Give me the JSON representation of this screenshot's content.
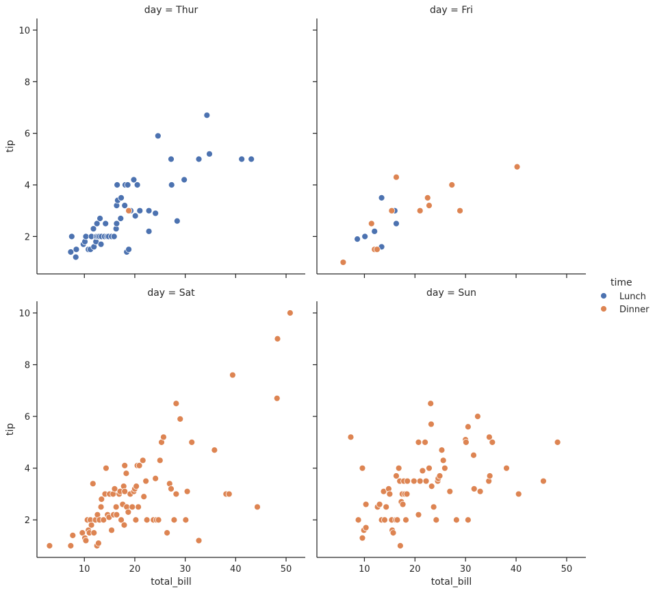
{
  "chart_data": {
    "type": "scatter",
    "xlabel": "total_bill",
    "ylabel": "tip",
    "xlim": [
      0.6,
      53.8
    ],
    "ylim": [
      0.55,
      10.45
    ],
    "xticks": [
      10,
      20,
      30,
      40,
      50
    ],
    "yticks": [
      2,
      4,
      6,
      8,
      10
    ],
    "legend": {
      "title": "time",
      "placement": "right",
      "entries": [
        {
          "label": "Lunch",
          "color": "#4c72b0"
        },
        {
          "label": "Dinner",
          "color": "#dd8452"
        }
      ]
    },
    "panels": [
      {
        "title": "day = Thur",
        "series": [
          {
            "name": "Lunch",
            "points": [
              [
                7.3,
                1.4
              ],
              [
                7.5,
                2.0
              ],
              [
                8.3,
                1.2
              ],
              [
                8.4,
                1.5
              ],
              [
                9.8,
                1.7
              ],
              [
                10.1,
                1.8
              ],
              [
                10.3,
                2.0
              ],
              [
                10.8,
                1.5
              ],
              [
                11.2,
                1.5
              ],
              [
                11.4,
                2.0
              ],
              [
                11.8,
                2.3
              ],
              [
                11.9,
                1.6
              ],
              [
                12.3,
                1.8
              ],
              [
                12.4,
                2.0
              ],
              [
                12.5,
                2.5
              ],
              [
                12.7,
                2.0
              ],
              [
                13.0,
                2.0
              ],
              [
                13.1,
                2.7
              ],
              [
                13.3,
                1.7
              ],
              [
                13.4,
                2.0
              ],
              [
                14.0,
                2.0
              ],
              [
                14.2,
                2.5
              ],
              [
                14.5,
                2.0
              ],
              [
                14.8,
                2.0
              ],
              [
                15.4,
                2.0
              ],
              [
                15.9,
                2.0
              ],
              [
                16.3,
                2.3
              ],
              [
                16.4,
                2.5
              ],
              [
                16.4,
                3.2
              ],
              [
                16.5,
                4.0
              ],
              [
                16.6,
                3.4
              ],
              [
                17.2,
                2.7
              ],
              [
                17.3,
                3.5
              ],
              [
                18.0,
                3.2
              ],
              [
                18.1,
                4.0
              ],
              [
                18.4,
                1.4
              ],
              [
                18.6,
                4.0
              ],
              [
                18.8,
                1.5
              ],
              [
                19.2,
                3.0
              ],
              [
                19.8,
                4.2
              ],
              [
                20.1,
                2.8
              ],
              [
                20.5,
                4.0
              ],
              [
                21.0,
                3.0
              ],
              [
                22.8,
                2.2
              ],
              [
                22.8,
                3.0
              ],
              [
                24.1,
                2.9
              ],
              [
                24.6,
                5.9
              ],
              [
                27.2,
                5.0
              ],
              [
                27.3,
                4.0
              ],
              [
                28.4,
                2.6
              ],
              [
                29.8,
                4.2
              ],
              [
                32.7,
                5.0
              ],
              [
                34.3,
                6.7
              ],
              [
                34.8,
                5.2
              ],
              [
                41.2,
                5.0
              ],
              [
                43.1,
                5.0
              ]
            ]
          },
          {
            "name": "Dinner",
            "points": [
              [
                18.8,
                3.0
              ]
            ]
          }
        ]
      },
      {
        "title": "day = Fri",
        "series": [
          {
            "name": "Lunch",
            "points": [
              [
                8.6,
                1.9
              ],
              [
                10.1,
                2.0
              ],
              [
                12.0,
                2.2
              ],
              [
                13.4,
                3.5
              ],
              [
                13.4,
                1.6
              ],
              [
                16.0,
                3.0
              ],
              [
                16.3,
                2.5
              ]
            ]
          },
          {
            "name": "Dinner",
            "points": [
              [
                5.8,
                1.0
              ],
              [
                11.4,
                2.5
              ],
              [
                12.0,
                1.5
              ],
              [
                12.5,
                1.5
              ],
              [
                15.4,
                3.0
              ],
              [
                16.3,
                4.3
              ],
              [
                21.0,
                3.0
              ],
              [
                22.5,
                3.5
              ],
              [
                22.8,
                3.2
              ],
              [
                27.3,
                4.0
              ],
              [
                28.9,
                3.0
              ],
              [
                40.2,
                4.7
              ]
            ]
          }
        ]
      },
      {
        "title": "day = Sat",
        "series": [
          {
            "name": "Lunch",
            "points": []
          },
          {
            "name": "Dinner",
            "points": [
              [
                3.1,
                1.0
              ],
              [
                7.3,
                1.0
              ],
              [
                7.7,
                1.4
              ],
              [
                9.6,
                1.5
              ],
              [
                10.1,
                1.3
              ],
              [
                10.3,
                1.2
              ],
              [
                10.6,
                2.0
              ],
              [
                10.8,
                1.6
              ],
              [
                11.0,
                1.5
              ],
              [
                11.2,
                2.0
              ],
              [
                11.4,
                1.8
              ],
              [
                11.7,
                3.4
              ],
              [
                11.9,
                1.5
              ],
              [
                12.2,
                2.0
              ],
              [
                12.5,
                1.0
              ],
              [
                12.6,
                2.2
              ],
              [
                12.8,
                1.1
              ],
              [
                13.0,
                2.0
              ],
              [
                13.3,
                2.5
              ],
              [
                13.4,
                2.8
              ],
              [
                13.8,
                2.0
              ],
              [
                14.1,
                3.0
              ],
              [
                14.3,
                4.0
              ],
              [
                14.6,
                2.2
              ],
              [
                14.9,
                2.1
              ],
              [
                15.0,
                3.0
              ],
              [
                15.4,
                1.6
              ],
              [
                15.7,
                3.0
              ],
              [
                15.8,
                2.2
              ],
              [
                16.0,
                3.2
              ],
              [
                16.3,
                2.5
              ],
              [
                16.4,
                2.2
              ],
              [
                16.9,
                3.0
              ],
              [
                17.1,
                3.1
              ],
              [
                17.3,
                2.0
              ],
              [
                17.6,
                2.6
              ],
              [
                17.8,
                3.3
              ],
              [
                17.9,
                1.8
              ],
              [
                18.0,
                4.1
              ],
              [
                18.0,
                3.1
              ],
              [
                18.3,
                3.8
              ],
              [
                18.4,
                2.5
              ],
              [
                18.7,
                2.3
              ],
              [
                19.1,
                3.0
              ],
              [
                19.5,
                2.5
              ],
              [
                19.8,
                3.1
              ],
              [
                20.0,
                3.2
              ],
              [
                20.2,
                2.0
              ],
              [
                20.3,
                3.3
              ],
              [
                20.5,
                4.1
              ],
              [
                20.7,
                2.5
              ],
              [
                20.9,
                4.1
              ],
              [
                21.6,
                4.3
              ],
              [
                21.8,
                2.9
              ],
              [
                22.2,
                3.5
              ],
              [
                22.4,
                2.0
              ],
              [
                23.7,
                2.0
              ],
              [
                24.1,
                3.6
              ],
              [
                24.3,
                2.0
              ],
              [
                24.7,
                2.0
              ],
              [
                25.0,
                4.3
              ],
              [
                25.3,
                5.0
              ],
              [
                25.7,
                5.2
              ],
              [
                26.4,
                1.5
              ],
              [
                26.9,
                3.4
              ],
              [
                27.2,
                3.2
              ],
              [
                27.8,
                2.0
              ],
              [
                28.2,
                6.5
              ],
              [
                28.2,
                3.0
              ],
              [
                29.0,
                5.9
              ],
              [
                30.1,
                2.0
              ],
              [
                30.4,
                3.1
              ],
              [
                31.3,
                5.0
              ],
              [
                32.7,
                1.2
              ],
              [
                35.8,
                4.7
              ],
              [
                38.1,
                3.0
              ],
              [
                38.7,
                3.0
              ],
              [
                39.4,
                7.6
              ],
              [
                44.3,
                2.5
              ],
              [
                48.2,
                6.7
              ],
              [
                48.3,
                9.0
              ],
              [
                50.8,
                10.0
              ]
            ]
          }
        ]
      },
      {
        "title": "day = Sun",
        "series": [
          {
            "name": "Lunch",
            "points": []
          },
          {
            "name": "Dinner",
            "points": [
              [
                7.3,
                5.2
              ],
              [
                8.8,
                2.0
              ],
              [
                9.6,
                1.3
              ],
              [
                9.6,
                4.0
              ],
              [
                9.9,
                1.6
              ],
              [
                10.3,
                1.7
              ],
              [
                10.3,
                1.7
              ],
              [
                10.3,
                2.6
              ],
              [
                12.6,
                2.5
              ],
              [
                13.0,
                2.6
              ],
              [
                13.4,
                2.0
              ],
              [
                13.8,
                3.1
              ],
              [
                14.0,
                2.0
              ],
              [
                14.3,
                2.5
              ],
              [
                14.8,
                3.2
              ],
              [
                15.0,
                3.0
              ],
              [
                15.4,
                2.0
              ],
              [
                15.5,
                1.6
              ],
              [
                15.7,
                1.5
              ],
              [
                16.2,
                2.0
              ],
              [
                16.3,
                3.7
              ],
              [
                16.5,
                2.0
              ],
              [
                16.8,
                4.0
              ],
              [
                17.0,
                3.5
              ],
              [
                17.1,
                1.0
              ],
              [
                17.3,
                2.7
              ],
              [
                17.5,
                3.0
              ],
              [
                17.6,
                2.6
              ],
              [
                17.8,
                3.5
              ],
              [
                18.0,
                3.0
              ],
              [
                18.2,
                2.0
              ],
              [
                18.4,
                3.0
              ],
              [
                18.5,
                3.5
              ],
              [
                19.8,
                3.5
              ],
              [
                20.7,
                5.0
              ],
              [
                20.7,
                2.2
              ],
              [
                21.0,
                3.5
              ],
              [
                21.5,
                3.9
              ],
              [
                22.0,
                5.0
              ],
              [
                22.2,
                3.5
              ],
              [
                22.8,
                4.0
              ],
              [
                23.1,
                6.5
              ],
              [
                23.2,
                5.7
              ],
              [
                23.3,
                3.3
              ],
              [
                23.7,
                2.5
              ],
              [
                24.2,
                2.0
              ],
              [
                24.5,
                3.5
              ],
              [
                24.6,
                3.6
              ],
              [
                24.9,
                3.7
              ],
              [
                25.3,
                4.7
              ],
              [
                25.6,
                4.3
              ],
              [
                25.9,
                4.0
              ],
              [
                26.9,
                3.1
              ],
              [
                28.2,
                2.0
              ],
              [
                30.0,
                5.1
              ],
              [
                30.1,
                5.0
              ],
              [
                30.5,
                5.6
              ],
              [
                30.5,
                2.0
              ],
              [
                31.6,
                4.5
              ],
              [
                31.7,
                3.2
              ],
              [
                32.4,
                6.0
              ],
              [
                32.9,
                3.1
              ],
              [
                34.6,
                3.5
              ],
              [
                34.7,
                5.2
              ],
              [
                34.8,
                3.7
              ],
              [
                35.3,
                5.0
              ],
              [
                38.1,
                4.0
              ],
              [
                40.5,
                3.0
              ],
              [
                45.4,
                3.5
              ],
              [
                48.2,
                5.0
              ]
            ]
          }
        ]
      }
    ]
  }
}
